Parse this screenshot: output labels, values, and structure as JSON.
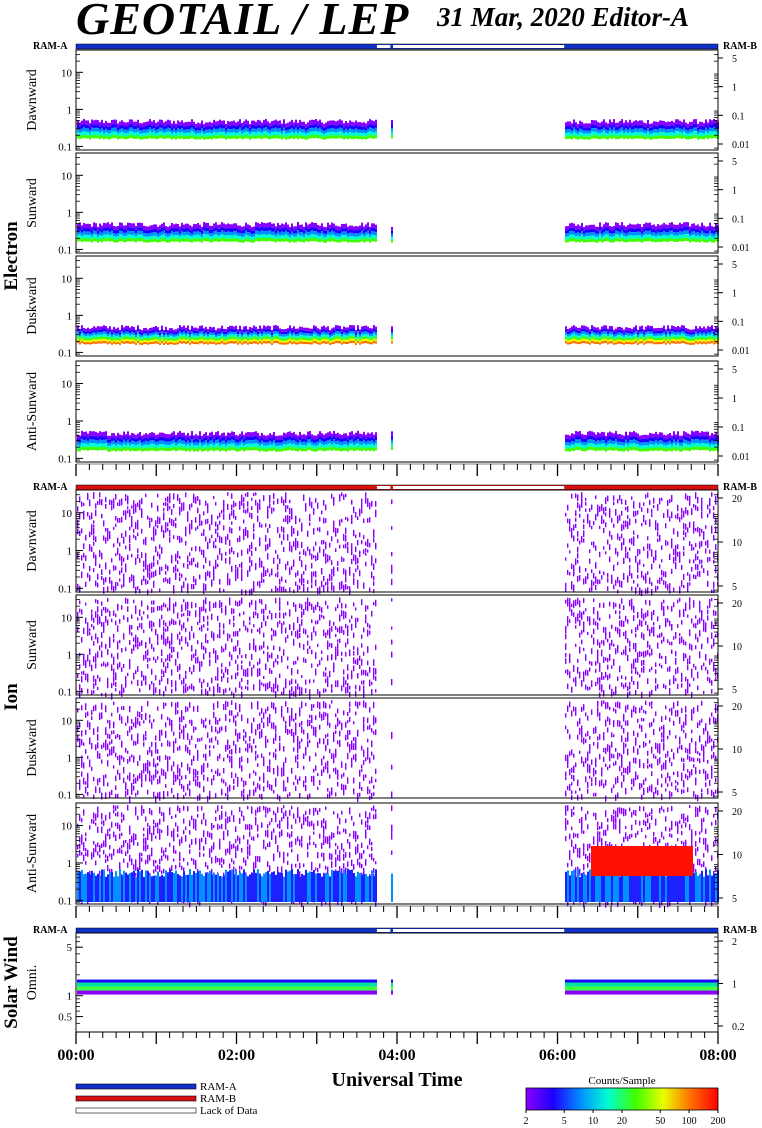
{
  "header": {
    "title": "GEOTAIL / LEP",
    "date": "31 Mar, 2020   Editor-A"
  },
  "chart_data": {
    "type": "heatmap",
    "xlabel": "Universal Time",
    "x_ticks": [
      "00:00",
      "02:00",
      "04:00",
      "06:00",
      "08:00"
    ],
    "xlim": [
      "00:00",
      "08:00"
    ],
    "groups": [
      {
        "name": "Electron",
        "ram_left": "RAM-A",
        "ram_right": "RAM-B",
        "ram_mode": "RAM-A",
        "panels": [
          {
            "label": "Dawnward",
            "y_ticks": [
              "10",
              "1",
              "0.1"
            ],
            "y_ticks_right": [
              "5",
              "1",
              "0.1",
              "0.01"
            ],
            "ylim": [
              0.08,
              40
            ],
            "data_intervals": [
              [
                "00:00",
                "03:45"
              ],
              [
                "03:55",
                "03:57"
              ],
              [
                "06:05",
                "08:00"
              ]
            ]
          },
          {
            "label": "Sunward",
            "y_ticks": [
              "10",
              "1",
              "0.1"
            ],
            "y_ticks_right": [
              "5",
              "1",
              "0.1",
              "0.01"
            ],
            "ylim": [
              0.08,
              40
            ],
            "data_intervals": [
              [
                "00:00",
                "03:45"
              ],
              [
                "03:55",
                "03:57"
              ],
              [
                "06:05",
                "08:00"
              ]
            ]
          },
          {
            "label": "Duskward",
            "y_ticks": [
              "10",
              "1",
              "0.1"
            ],
            "y_ticks_right": [
              "5",
              "1",
              "0.1",
              "0.01"
            ],
            "ylim": [
              0.08,
              40
            ],
            "data_intervals": [
              [
                "00:00",
                "03:45"
              ],
              [
                "03:55",
                "03:57"
              ],
              [
                "06:05",
                "08:00"
              ]
            ]
          },
          {
            "label": "Anti-Sunward",
            "y_ticks": [
              "10",
              "1",
              "0.1"
            ],
            "y_ticks_right": [
              "5",
              "1",
              "0.1",
              "0.01"
            ],
            "ylim": [
              0.08,
              40
            ],
            "data_intervals": [
              [
                "00:00",
                "03:45"
              ],
              [
                "03:55",
                "03:57"
              ],
              [
                "06:05",
                "08:00"
              ]
            ]
          }
        ]
      },
      {
        "name": "Ion",
        "ram_left": "RAM-A",
        "ram_right": "RAM-B",
        "ram_mode": "RAM-B",
        "panels": [
          {
            "label": "Dawnward",
            "y_ticks": [
              "10",
              "1",
              "0.1"
            ],
            "y_ticks_right": [
              "20",
              "10",
              "5"
            ],
            "ylim": [
              0.08,
              40
            ],
            "data_intervals": [
              [
                "00:00",
                "03:45"
              ],
              [
                "03:55",
                "03:57"
              ],
              [
                "06:05",
                "08:00"
              ]
            ]
          },
          {
            "label": "Sunward",
            "y_ticks": [
              "10",
              "1",
              "0.1"
            ],
            "y_ticks_right": [
              "20",
              "10",
              "5"
            ],
            "ylim": [
              0.08,
              40
            ],
            "data_intervals": [
              [
                "00:00",
                "03:45"
              ],
              [
                "03:55",
                "03:57"
              ],
              [
                "06:05",
                "08:00"
              ]
            ]
          },
          {
            "label": "Duskward",
            "y_ticks": [
              "10",
              "1",
              "0.1"
            ],
            "y_ticks_right": [
              "20",
              "10",
              "5"
            ],
            "ylim": [
              0.08,
              40
            ],
            "data_intervals": [
              [
                "00:00",
                "03:45"
              ],
              [
                "03:55",
                "03:57"
              ],
              [
                "06:05",
                "08:00"
              ]
            ]
          },
          {
            "label": "Anti-Sunward",
            "y_ticks": [
              "10",
              "1",
              "0.1"
            ],
            "y_ticks_right": [
              "20",
              "10",
              "5"
            ],
            "ylim": [
              0.08,
              40
            ],
            "data_intervals": [
              [
                "00:00",
                "03:45"
              ],
              [
                "03:55",
                "03:57"
              ],
              [
                "06:05",
                "08:00"
              ]
            ]
          }
        ]
      },
      {
        "name": "Solar Wind",
        "ram_left": "RAM-A",
        "ram_right": "RAM-B",
        "ram_mode": "RAM-A",
        "panels": [
          {
            "label": "Omni.",
            "y_ticks": [
              "5",
              "1",
              "0.5"
            ],
            "y_ticks_right": [
              "2",
              "1",
              "0.2"
            ],
            "ylim": [
              0.3,
              8
            ],
            "data_intervals": [
              [
                "00:00",
                "03:45"
              ],
              [
                "03:55",
                "03:57"
              ],
              [
                "06:05",
                "08:00"
              ]
            ]
          }
        ]
      }
    ],
    "legend": {
      "items": [
        {
          "label": "RAM-A",
          "color": "#1030c8"
        },
        {
          "label": "RAM-B",
          "color": "#d81010"
        },
        {
          "label": "Lack of Data",
          "color": "#ffffff"
        }
      ]
    },
    "colorbar": {
      "title": "Counts/Sample",
      "ticks": [
        "2",
        "5",
        "10",
        "20",
        "50",
        "100",
        "200"
      ],
      "colors": [
        "#8800ff",
        "#1d00ff",
        "#0090ff",
        "#00ffd0",
        "#40ff00",
        "#e8ff00",
        "#ff7000",
        "#ff0000"
      ]
    }
  }
}
